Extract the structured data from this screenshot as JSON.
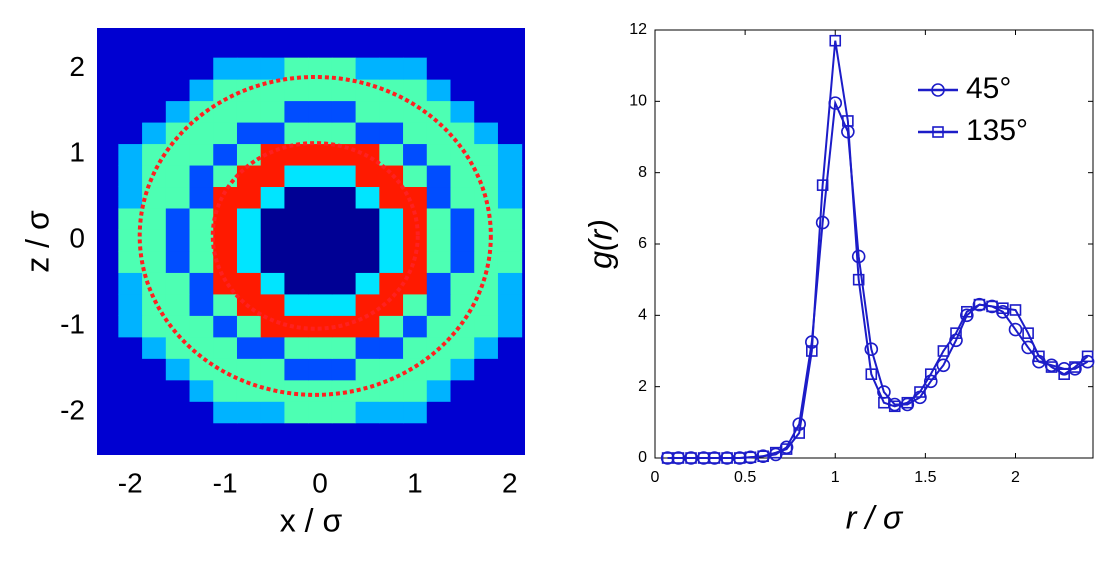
{
  "chart_data": [
    {
      "type": "heatmap",
      "xlabel": "x / σ",
      "ylabel": "z / σ",
      "x": [
        -2,
        -1.75,
        -1.5,
        -1.25,
        -1,
        -0.75,
        -0.5,
        -0.25,
        0,
        0.25,
        0.5,
        0.75,
        1,
        1.25,
        1.5,
        1.75,
        2
      ],
      "y": [
        -2,
        -1.75,
        -1.5,
        -1.25,
        -1,
        -0.75,
        -0.5,
        -0.25,
        0,
        0.25,
        0.5,
        0.75,
        1,
        1.25,
        1.5,
        1.75,
        2
      ],
      "values": [
        [
          0.08,
          0.08,
          0.08,
          0.08,
          0.3,
          0.3,
          0.3,
          0.45,
          0.45,
          0.45,
          0.3,
          0.3,
          0.3,
          0.08,
          0.08,
          0.08,
          0.08
        ],
        [
          0.08,
          0.08,
          0.08,
          0.3,
          0.45,
          0.45,
          0.45,
          0.45,
          0.45,
          0.45,
          0.45,
          0.45,
          0.45,
          0.3,
          0.08,
          0.08,
          0.08
        ],
        [
          0.08,
          0.08,
          0.3,
          0.45,
          0.45,
          0.45,
          0.45,
          0.2,
          0.2,
          0.2,
          0.45,
          0.45,
          0.45,
          0.45,
          0.3,
          0.08,
          0.08
        ],
        [
          0.08,
          0.3,
          0.45,
          0.45,
          0.45,
          0.2,
          0.2,
          0.45,
          0.45,
          0.45,
          0.2,
          0.2,
          0.45,
          0.45,
          0.45,
          0.3,
          0.08
        ],
        [
          0.3,
          0.45,
          0.45,
          0.45,
          0.2,
          0.45,
          0.85,
          0.85,
          0.85,
          0.85,
          0.85,
          0.45,
          0.2,
          0.45,
          0.45,
          0.45,
          0.3
        ],
        [
          0.3,
          0.45,
          0.45,
          0.2,
          0.45,
          0.85,
          0.85,
          0.35,
          0.35,
          0.35,
          0.85,
          0.85,
          0.45,
          0.2,
          0.45,
          0.45,
          0.3
        ],
        [
          0.3,
          0.45,
          0.45,
          0.2,
          0.85,
          0.85,
          0.35,
          0.02,
          0.02,
          0.02,
          0.35,
          0.85,
          0.85,
          0.2,
          0.45,
          0.45,
          0.3
        ],
        [
          0.45,
          0.45,
          0.2,
          0.45,
          0.85,
          0.35,
          0.02,
          0.02,
          0.02,
          0.02,
          0.02,
          0.35,
          0.85,
          0.45,
          0.2,
          0.45,
          0.45
        ],
        [
          0.45,
          0.45,
          0.2,
          0.45,
          0.85,
          0.35,
          0.02,
          0.02,
          0.02,
          0.02,
          0.02,
          0.35,
          0.85,
          0.45,
          0.2,
          0.45,
          0.45
        ],
        [
          0.45,
          0.45,
          0.2,
          0.45,
          0.85,
          0.35,
          0.02,
          0.02,
          0.02,
          0.02,
          0.02,
          0.35,
          0.85,
          0.45,
          0.2,
          0.45,
          0.45
        ],
        [
          0.3,
          0.45,
          0.45,
          0.2,
          0.85,
          0.85,
          0.35,
          0.02,
          0.02,
          0.02,
          0.35,
          0.85,
          0.85,
          0.2,
          0.45,
          0.45,
          0.3
        ],
        [
          0.3,
          0.45,
          0.45,
          0.2,
          0.45,
          0.85,
          0.85,
          0.35,
          0.35,
          0.35,
          0.85,
          0.85,
          0.45,
          0.2,
          0.45,
          0.45,
          0.3
        ],
        [
          0.3,
          0.45,
          0.45,
          0.45,
          0.2,
          0.45,
          0.85,
          0.85,
          0.85,
          0.85,
          0.85,
          0.45,
          0.2,
          0.45,
          0.45,
          0.45,
          0.3
        ],
        [
          0.08,
          0.3,
          0.45,
          0.45,
          0.45,
          0.2,
          0.2,
          0.45,
          0.45,
          0.45,
          0.2,
          0.2,
          0.45,
          0.45,
          0.45,
          0.3,
          0.08
        ],
        [
          0.08,
          0.08,
          0.3,
          0.45,
          0.45,
          0.45,
          0.45,
          0.2,
          0.2,
          0.2,
          0.45,
          0.45,
          0.45,
          0.45,
          0.3,
          0.08,
          0.08
        ],
        [
          0.08,
          0.08,
          0.08,
          0.3,
          0.45,
          0.45,
          0.45,
          0.45,
          0.45,
          0.45,
          0.45,
          0.45,
          0.45,
          0.3,
          0.08,
          0.08,
          0.08
        ],
        [
          0.08,
          0.08,
          0.08,
          0.08,
          0.3,
          0.3,
          0.3,
          0.45,
          0.45,
          0.45,
          0.3,
          0.3,
          0.3,
          0.08,
          0.08,
          0.08,
          0.08
        ]
      ],
      "colormap": "jet",
      "circles": [
        {
          "cx": -0.05,
          "cy": 0.05,
          "r": 1.08,
          "color": "#ff2020"
        },
        {
          "cx": -0.05,
          "cy": 0.05,
          "r": 1.85,
          "color": "#ff2020"
        }
      ],
      "xlim": [
        -2.35,
        2.16
      ],
      "ylim": [
        -2.5,
        2.47
      ],
      "xticks": [
        -2,
        -1,
        0,
        1,
        2
      ],
      "yticks": [
        -2,
        -1,
        0,
        1,
        2
      ]
    },
    {
      "type": "line",
      "xlabel": "r / σ",
      "ylabel": "g(r)",
      "x": [
        0.07,
        0.13,
        0.2,
        0.27,
        0.33,
        0.4,
        0.47,
        0.53,
        0.6,
        0.67,
        0.73,
        0.8,
        0.87,
        0.93,
        1.0,
        1.07,
        1.13,
        1.2,
        1.27,
        1.33,
        1.4,
        1.47,
        1.53,
        1.6,
        1.67,
        1.73,
        1.8,
        1.87,
        1.93,
        2.0,
        2.07,
        2.13,
        2.2,
        2.27,
        2.33,
        2.4
      ],
      "series": [
        {
          "name": "45°",
          "color": "#1c1cc8",
          "marker": "circle",
          "values": [
            0,
            0,
            0,
            0,
            0,
            0,
            0,
            0.02,
            0.05,
            0.1,
            0.3,
            0.95,
            3.25,
            6.6,
            9.95,
            9.15,
            5.65,
            3.05,
            1.85,
            1.5,
            1.5,
            1.7,
            2.15,
            2.6,
            3.3,
            4.0,
            4.3,
            4.25,
            4.1,
            3.6,
            3.1,
            2.7,
            2.6,
            2.5,
            2.5,
            2.7
          ]
        },
        {
          "name": "135°",
          "color": "#1c1cc8",
          "marker": "square",
          "values": [
            0,
            0,
            0,
            0,
            0,
            0,
            0,
            0.02,
            0.05,
            0.15,
            0.25,
            0.7,
            3.0,
            7.65,
            11.7,
            9.45,
            5.0,
            2.35,
            1.55,
            1.45,
            1.55,
            1.85,
            2.35,
            3.0,
            3.5,
            4.1,
            4.3,
            4.25,
            4.2,
            4.15,
            3.5,
            2.85,
            2.55,
            2.35,
            2.55,
            2.85
          ]
        }
      ],
      "legend": "upper right",
      "xlim": [
        0,
        2.43
      ],
      "ylim": [
        0,
        12
      ],
      "xticks": [
        0,
        0.5,
        1,
        1.5,
        2
      ],
      "yticks": [
        0,
        2,
        4,
        6,
        8,
        10,
        12
      ]
    }
  ]
}
